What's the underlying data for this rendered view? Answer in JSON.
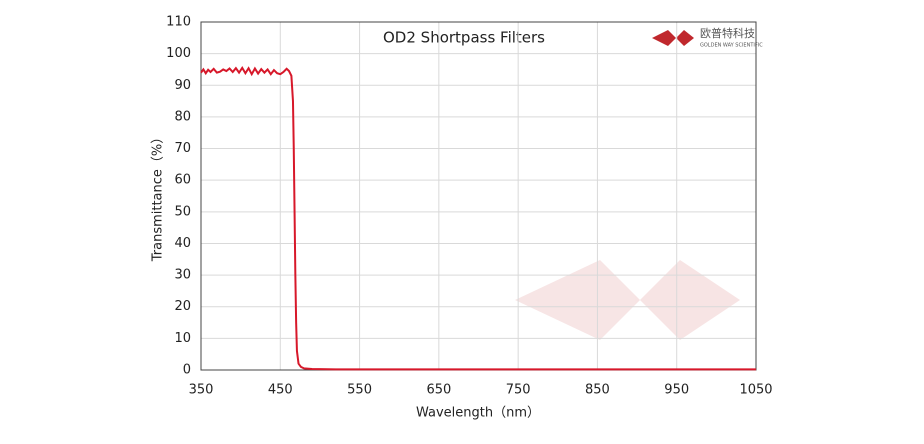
{
  "chart_data": {
    "type": "line",
    "title": "OD2  Shortpass Filters",
    "x_label": "Wavelength（nm）",
    "y_label": "Transmittance（%）",
    "logo_text": "欧普特科技",
    "logo_subtext": "GOLDEN WAY SCIENTIFIC",
    "x": [
      350,
      353,
      356,
      359,
      362,
      366,
      370,
      374,
      378,
      382,
      386,
      390,
      394,
      398,
      402,
      406,
      410,
      414,
      418,
      422,
      426,
      430,
      434,
      438,
      442,
      446,
      450,
      454,
      458,
      461,
      464,
      466,
      467,
      468,
      469,
      470,
      471,
      473,
      476,
      480,
      490,
      520,
      600,
      800,
      1050
    ],
    "series": [
      {
        "name": "OD2 Shortpass",
        "color": "#d7182a",
        "values": [
          94,
          95,
          93.8,
          94.9,
          94.2,
          95.2,
          94,
          94.3,
          95,
          94.5,
          95.3,
          94.2,
          95.4,
          94,
          95.5,
          93.8,
          95.4,
          93.5,
          95.3,
          93.7,
          95.1,
          94,
          95,
          93.5,
          94.8,
          93.8,
          93.5,
          94.2,
          95.2,
          94.5,
          93,
          85,
          70,
          50,
          30,
          15,
          6,
          2,
          1,
          0.5,
          0.3,
          0.2,
          0.2,
          0.2,
          0.2
        ]
      }
    ],
    "xlim": [
      350,
      1050
    ],
    "xticks": [
      350,
      450,
      550,
      650,
      750,
      850,
      950,
      1050
    ],
    "ylim": [
      0,
      110
    ],
    "yticks": [
      0,
      10,
      20,
      30,
      40,
      50,
      60,
      70,
      80,
      90,
      100,
      110
    ],
    "grid": true
  }
}
